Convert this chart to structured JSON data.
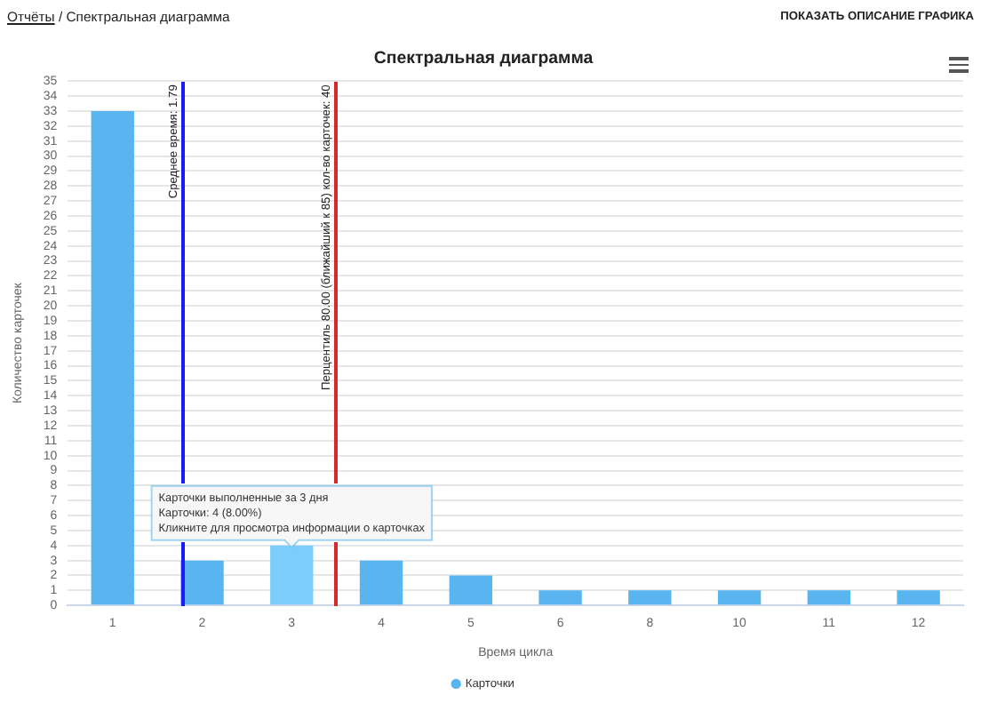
{
  "chart_data": {
    "type": "bar",
    "title": "Спектральная диаграмма",
    "xlabel": "Время цикла",
    "ylabel": "Количество карточек",
    "categories": [
      "1",
      "2",
      "3",
      "4",
      "5",
      "6",
      "8",
      "10",
      "11",
      "12"
    ],
    "series": [
      {
        "name": "Карточки",
        "color": "#58b5ef",
        "colors": [
          "#58b5ef",
          "#58b5ef",
          "#7ccdfb",
          "#58b5ef",
          "#58b5ef",
          "#58b5ef",
          "#58b5ef",
          "#58b5ef",
          "#58b5ef",
          "#58b5ef"
        ],
        "values": [
          33,
          3,
          4,
          3,
          2,
          1,
          1,
          1,
          1,
          1
        ]
      }
    ],
    "ylim": [
      0,
      35
    ],
    "yticks": [
      0,
      1,
      2,
      3,
      4,
      5,
      6,
      7,
      8,
      9,
      10,
      11,
      12,
      13,
      14,
      15,
      16,
      17,
      18,
      19,
      20,
      21,
      22,
      23,
      24,
      25,
      26,
      27,
      28,
      29,
      30,
      31,
      32,
      33,
      34,
      35
    ],
    "grid": "y",
    "legend": "bottom",
    "annotations": [
      "Отчёты",
      "/ Спектральная диаграмма",
      "ПОКАЗАТЬ ОПИСАНИЕ ГРАФИКА",
      "Среднее время: 1.79",
      "Перцентиль 80.00 (ближайший к 85) кол-во карточек: 40",
      {
        "text": "Карточки выполненные за 3 дня\nКарточки: 4 (8.00%)\nКликните для просмотра информации о карточках",
        "x": "3",
        "y": 4
      }
    ]
  }
}
